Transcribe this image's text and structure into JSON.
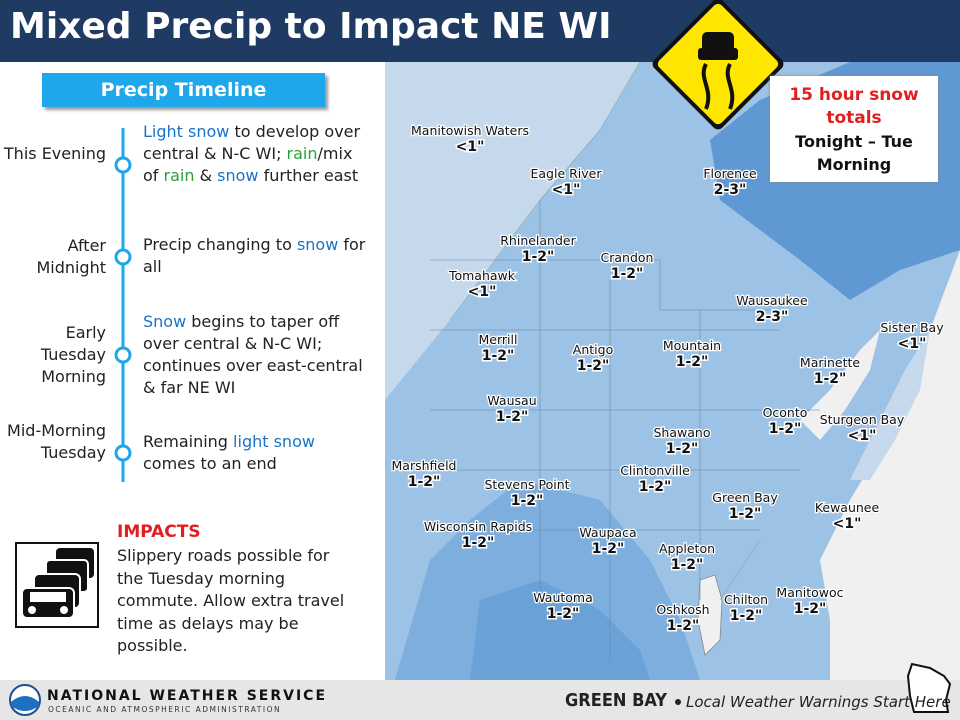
{
  "header": {
    "title": "Mixed Precip to Impact NE WI"
  },
  "timeline": {
    "title": "Precip Timeline",
    "items": [
      {
        "time": "This Evening",
        "text": [
          {
            "text": "Light snow",
            "color": "#1a73c9"
          },
          {
            "text": " to develop over central & N-C WI; "
          },
          {
            "text": "rain",
            "color": "#2e9e3e"
          },
          {
            "text": "/mix of "
          },
          {
            "text": "rain",
            "color": "#2e9e3e"
          },
          {
            "text": " & "
          },
          {
            "text": "snow",
            "color": "#1a73c9"
          },
          {
            "text": " further east"
          }
        ]
      },
      {
        "time": "After Midnight",
        "text": [
          {
            "text": "Precip changing to "
          },
          {
            "text": "snow",
            "color": "#1a73c9"
          },
          {
            "text": " for all"
          }
        ]
      },
      {
        "time": "Early Tuesday Morning",
        "text": [
          {
            "text": "Snow",
            "color": "#1a73c9"
          },
          {
            "text": " begins to taper off over central & N-C WI; continues over east-central & far NE WI"
          }
        ]
      },
      {
        "time": "Mid-Morning Tuesday",
        "text": [
          {
            "text": "Remaining "
          },
          {
            "text": "light snow",
            "color": "#1a73c9"
          },
          {
            "text": " comes to an end"
          }
        ]
      }
    ]
  },
  "impacts": {
    "title": "IMPACTS",
    "text": "Slippery roads possible for the Tuesday morning commute. Allow extra travel time as delays may be possible."
  },
  "legend": {
    "title": "15 hour snow totals",
    "subtitle": "Tonight – Tue Morning"
  },
  "map": {
    "cities": [
      {
        "name": "Manitowish Waters",
        "amount": "<1\""
      },
      {
        "name": "Eagle River",
        "amount": "<1\""
      },
      {
        "name": "Florence",
        "amount": "2-3\""
      },
      {
        "name": "Rhinelander",
        "amount": "1-2\""
      },
      {
        "name": "Crandon",
        "amount": "1-2\""
      },
      {
        "name": "Tomahawk",
        "amount": "<1\""
      },
      {
        "name": "Wausaukee",
        "amount": "2-3\""
      },
      {
        "name": "Sister Bay",
        "amount": "<1\""
      },
      {
        "name": "Merrill",
        "amount": "1-2\""
      },
      {
        "name": "Antigo",
        "amount": "1-2\""
      },
      {
        "name": "Mountain",
        "amount": "1-2\""
      },
      {
        "name": "Marinette",
        "amount": "1-2\""
      },
      {
        "name": "Wausau",
        "amount": "1-2\""
      },
      {
        "name": "Oconto",
        "amount": "1-2\""
      },
      {
        "name": "Sturgeon Bay",
        "amount": "<1\""
      },
      {
        "name": "Shawano",
        "amount": "1-2\""
      },
      {
        "name": "Marshfield",
        "amount": "1-2\""
      },
      {
        "name": "Clintonville",
        "amount": "1-2\""
      },
      {
        "name": "Stevens Point",
        "amount": "1-2\""
      },
      {
        "name": "Green Bay",
        "amount": "1-2\""
      },
      {
        "name": "Kewaunee",
        "amount": "<1\""
      },
      {
        "name": "Wisconsin Rapids",
        "amount": "1-2\""
      },
      {
        "name": "Waupaca",
        "amount": "1-2\""
      },
      {
        "name": "Appleton",
        "amount": "1-2\""
      },
      {
        "name": "Wautoma",
        "amount": "1-2\""
      },
      {
        "name": "Oshkosh",
        "amount": "1-2\""
      },
      {
        "name": "Chilton",
        "amount": "1-2\""
      },
      {
        "name": "Manitowoc",
        "amount": "1-2\""
      }
    ]
  },
  "footer": {
    "agency": "NATIONAL WEATHER SERVICE",
    "agency_sub": "OCEANIC AND ATMOSPHERIC ADMINISTRATION",
    "office": "GREEN BAY",
    "tagline": "Local Weather Warnings Start Here"
  }
}
